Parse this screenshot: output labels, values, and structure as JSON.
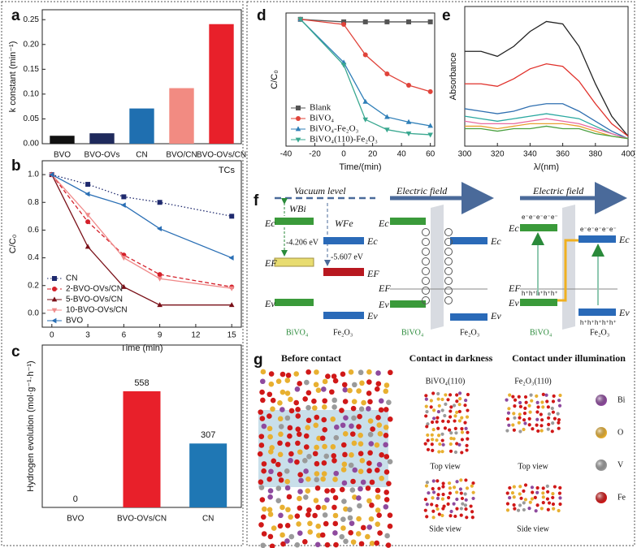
{
  "chart_data": [
    {
      "type": "bar",
      "panel": "a",
      "ylabel": "k constant (min⁻¹)",
      "categories": [
        "BVO",
        "BVO-OVs",
        "CN",
        "BVO/CN",
        "BVO-OVs/CN"
      ],
      "values": [
        0.016,
        0.021,
        0.071,
        0.112,
        0.241
      ],
      "colors": [
        "#111111",
        "#1f2a5c",
        "#1f6fb0",
        "#f28b82",
        "#e8202a"
      ],
      "ylim": [
        0,
        0.27
      ],
      "yticks": [
        {
          "value": 0,
          "label": "0.00"
        },
        0.05,
        {
          "value": 0.1,
          "label": "0.10"
        },
        0.15,
        {
          "value": 0.2,
          "label": "0.20"
        },
        0.25
      ]
    },
    {
      "type": "line",
      "panel": "b",
      "annotation": "TCs",
      "xlabel": "Time (min)",
      "ylabel": "C/C₀",
      "x": [
        0,
        3,
        6,
        9,
        15
      ],
      "xlim": [
        -0.8,
        15.8
      ],
      "xticks": [
        0,
        3,
        6,
        9,
        12,
        15
      ],
      "ylim": [
        -0.1,
        1.1
      ],
      "yticks": [
        {
          "value": 0,
          "label": "0.0"
        },
        0.2,
        0.4,
        0.6,
        0.8,
        {
          "value": 1,
          "label": "1.0"
        }
      ],
      "legend": "lower left",
      "series": [
        {
          "name": "CN",
          "color": "#1f2a6e",
          "marker": "square",
          "linestyle": "dotted",
          "values": [
            1.0,
            0.93,
            0.84,
            0.8,
            0.7
          ]
        },
        {
          "name": "2-BVO-OVs/CN",
          "color": "#d4202a",
          "marker": "circle",
          "linestyle": "dashed",
          "values": [
            1.0,
            0.66,
            0.42,
            0.28,
            0.19
          ]
        },
        {
          "name": "5-BVO-OVs/CN",
          "color": "#7a1018",
          "marker": "triangle-up",
          "linestyle": "solid",
          "values": [
            1.0,
            0.48,
            0.19,
            0.06,
            0.06
          ]
        },
        {
          "name": "10-BVO-OVs/CN",
          "color": "#f08a8a",
          "marker": "triangle-down",
          "linestyle": "solid",
          "values": [
            1.0,
            0.71,
            0.4,
            0.25,
            0.18
          ]
        },
        {
          "name": "BVO",
          "color": "#2a6fb5",
          "marker": "triangle-left",
          "linestyle": "solid",
          "values": [
            1.0,
            0.86,
            0.78,
            0.61,
            0.4
          ]
        }
      ]
    },
    {
      "type": "bar",
      "panel": "c",
      "ylabel": "Hydrogen evolution (mol·g⁻¹·h⁻¹)",
      "categories": [
        "BVO",
        "BVO-OVs/CN",
        "CN"
      ],
      "values": [
        0,
        558,
        307
      ],
      "value_labels": [
        "0",
        "558",
        "307"
      ],
      "colors": [
        "#111111",
        "#e8202a",
        "#1f77b4"
      ],
      "ylim": [
        0,
        780
      ]
    },
    {
      "type": "line",
      "panel": "d",
      "xlabel": "Time/(min)",
      "ylabel": "C/C₀",
      "x": [
        -30,
        0,
        15,
        30,
        45,
        60
      ],
      "xlim": [
        -40,
        63
      ],
      "xticks": [
        -40,
        -20,
        0,
        20,
        40,
        60
      ],
      "ylim": [
        0,
        1.05
      ],
      "legend": "lower left",
      "series": [
        {
          "name": "Blank",
          "color": "#555555",
          "marker": "square",
          "linestyle": "solid",
          "values": [
            1.0,
            0.98,
            0.98,
            0.98,
            0.98,
            0.98
          ]
        },
        {
          "name": "BiVO₄",
          "color": "#e0433a",
          "marker": "circle",
          "linestyle": "solid",
          "values": [
            1.0,
            0.96,
            0.72,
            0.57,
            0.48,
            0.43
          ]
        },
        {
          "name": "BiVO₄-Fe₂O₃",
          "color": "#2f7fb8",
          "marker": "triangle-up",
          "linestyle": "solid",
          "values": [
            1.0,
            0.66,
            0.35,
            0.23,
            0.19,
            0.16
          ]
        },
        {
          "name": "BiVO₄(110)-Fe₂O₃",
          "color": "#3aa890",
          "marker": "triangle-down",
          "linestyle": "solid",
          "values": [
            1.0,
            0.64,
            0.21,
            0.13,
            0.1,
            0.09
          ]
        }
      ]
    },
    {
      "type": "line",
      "panel": "e",
      "xlabel": "λ/(nm)",
      "ylabel": "Absorbance",
      "x": [
        300,
        310,
        320,
        330,
        340,
        350,
        360,
        370,
        380,
        390,
        400
      ],
      "xlim": [
        300,
        400
      ],
      "xticks": [
        300,
        320,
        340,
        360,
        380,
        400
      ],
      "ylim": [
        0,
        0.56
      ],
      "series": [
        {
          "color": "#222222",
          "values": [
            0.38,
            0.38,
            0.36,
            0.4,
            0.46,
            0.5,
            0.49,
            0.4,
            0.25,
            0.12,
            0.04
          ]
        },
        {
          "color": "#e0302a",
          "values": [
            0.25,
            0.25,
            0.24,
            0.27,
            0.31,
            0.33,
            0.32,
            0.26,
            0.17,
            0.09,
            0.04
          ]
        },
        {
          "color": "#2f6fb0",
          "values": [
            0.15,
            0.14,
            0.13,
            0.14,
            0.16,
            0.17,
            0.17,
            0.14,
            0.1,
            0.06,
            0.03
          ]
        },
        {
          "color": "#2aa8a0",
          "values": [
            0.12,
            0.11,
            0.1,
            0.11,
            0.12,
            0.13,
            0.12,
            0.11,
            0.08,
            0.05,
            0.03
          ]
        },
        {
          "color": "#e86aa0",
          "values": [
            0.1,
            0.09,
            0.09,
            0.09,
            0.1,
            0.11,
            0.1,
            0.09,
            0.07,
            0.05,
            0.03
          ]
        },
        {
          "color": "#e8a030",
          "values": [
            0.08,
            0.08,
            0.07,
            0.08,
            0.09,
            0.09,
            0.09,
            0.08,
            0.06,
            0.04,
            0.03
          ]
        },
        {
          "color": "#4aa040",
          "values": [
            0.07,
            0.07,
            0.06,
            0.07,
            0.07,
            0.08,
            0.07,
            0.07,
            0.05,
            0.04,
            0.03
          ]
        }
      ]
    }
  ],
  "panel_f": {
    "panel": "f",
    "vacuum": "Vacuum level",
    "field": [
      "Electric field",
      "Electric field"
    ],
    "w_bi": "WBi",
    "w_fe": "WFe",
    "e_bi": "-4.206 eV",
    "e_fe": "-5.607 eV",
    "ec": "Ec",
    "ef": "EF",
    "ev": "Ev",
    "bivo4": "BiVO₄",
    "fe2o3": "Fe₂O₃",
    "electron": "e⁻",
    "hole": "h⁺"
  },
  "panel_g": {
    "panel": "g",
    "headings": [
      "Before contact",
      "Contact in darkness",
      "Contact under illumination"
    ],
    "materials": [
      "BiVO₄(110)",
      "Fe₂O₃(110)"
    ],
    "top": "Top view",
    "side": "Side view",
    "legend": [
      {
        "name": "Bi",
        "color": "#8e4a9e"
      },
      {
        "name": "O",
        "color": "#e8b030"
      },
      {
        "name": "V",
        "color": "#9a9a9a"
      },
      {
        "name": "Fe",
        "color": "#d01818"
      }
    ]
  }
}
